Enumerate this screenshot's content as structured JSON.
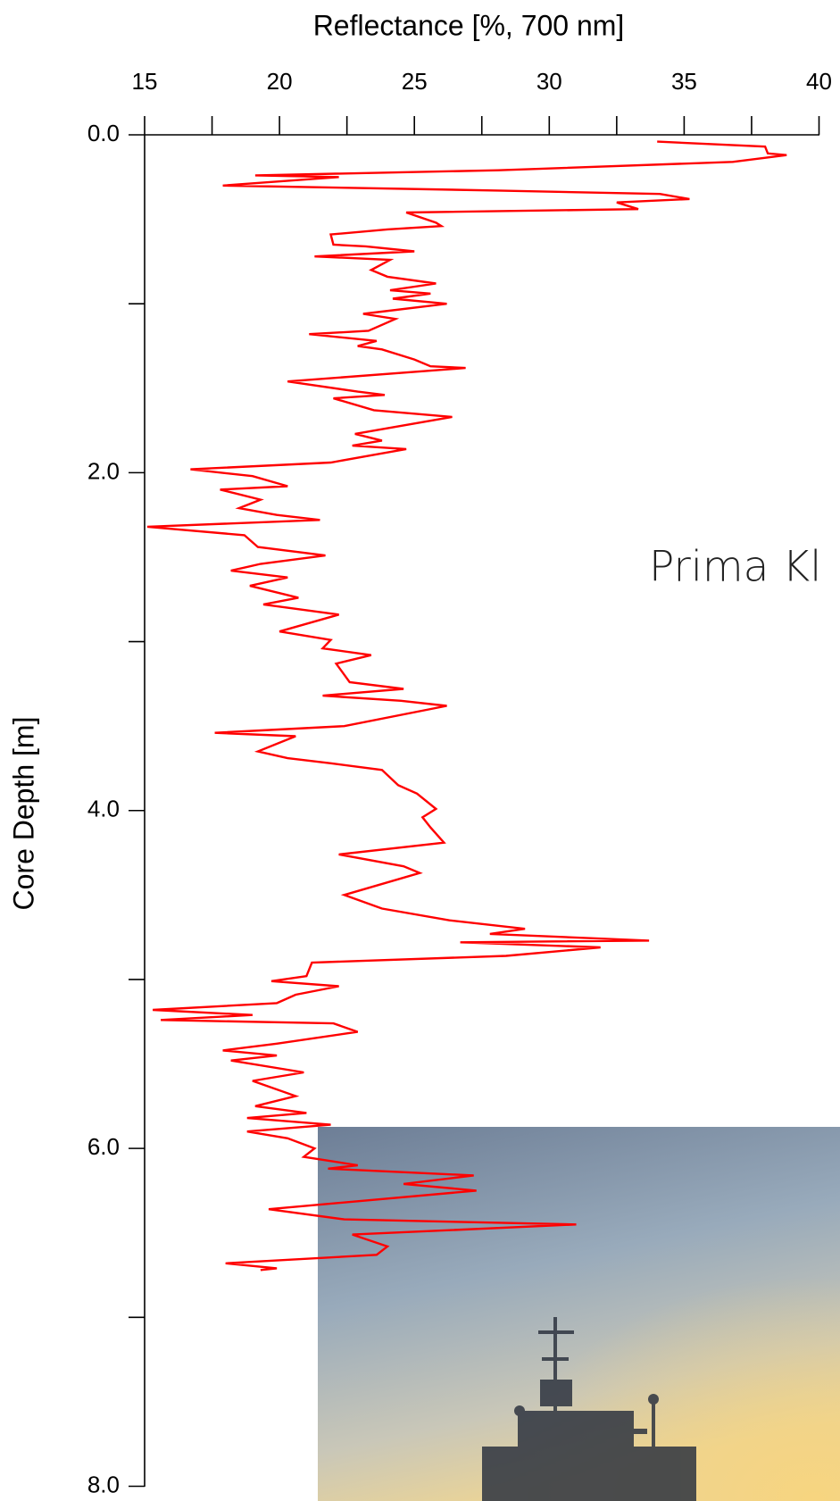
{
  "chart_data": {
    "type": "line",
    "orientation": "vertical",
    "ylabel": "Reflectance [%, 700 nm]",
    "xlabel": "Core Depth [m]",
    "annotation": "Prima Kl",
    "color": "#ff0000",
    "ylim": [
      15,
      40
    ],
    "yticks": [
      15,
      20,
      25,
      30,
      35,
      40
    ],
    "yminorticks": [
      17.5,
      22.5,
      27.5,
      32.5,
      37.5
    ],
    "xlim": [
      0,
      8
    ],
    "xticks": [
      {
        "value": 0,
        "label": "0.0"
      },
      {
        "value": 2,
        "label": "2.0"
      },
      {
        "value": 4,
        "label": "4.0"
      },
      {
        "value": 6,
        "label": "6.0"
      },
      {
        "value": 8,
        "label": "8.0"
      }
    ],
    "xminorticks": [
      1,
      3,
      5,
      7
    ],
    "x": [
      0.04,
      0.07,
      0.11,
      0.12,
      0.16,
      0.21,
      0.24,
      0.25,
      0.3,
      0.33,
      0.35,
      0.38,
      0.4,
      0.44,
      0.46,
      0.52,
      0.54,
      0.56,
      0.59,
      0.65,
      0.66,
      0.69,
      0.72,
      0.74,
      0.8,
      0.84,
      0.88,
      0.92,
      0.94,
      0.97,
      1.0,
      1.06,
      1.09,
      1.16,
      1.18,
      1.22,
      1.25,
      1.27,
      1.33,
      1.37,
      1.38,
      1.46,
      1.52,
      1.54,
      1.56,
      1.63,
      1.67,
      1.77,
      1.81,
      1.84,
      1.86,
      1.94,
      1.98,
      2.02,
      2.08,
      2.1,
      2.16,
      2.21,
      2.25,
      2.28,
      2.32,
      2.37,
      2.44,
      2.49,
      2.54,
      2.58,
      2.62,
      2.67,
      2.74,
      2.78,
      2.84,
      2.94,
      2.99,
      3.04,
      3.08,
      3.13,
      3.24,
      3.28,
      3.32,
      3.35,
      3.38,
      3.5,
      3.54,
      3.56,
      3.65,
      3.69,
      3.72,
      3.76,
      3.85,
      3.9,
      3.99,
      4.04,
      4.1,
      4.19,
      4.26,
      4.33,
      4.37,
      4.5,
      4.58,
      4.65,
      4.7,
      4.73,
      4.77,
      4.78,
      4.81,
      4.86,
      4.9,
      4.98,
      5.01,
      5.04,
      5.09,
      5.14,
      5.18,
      5.21,
      5.24,
      5.26,
      5.31,
      5.38,
      5.42,
      5.45,
      5.48,
      5.55,
      5.6,
      5.69,
      5.75,
      5.79,
      5.82,
      5.86,
      5.9,
      5.94,
      6.0,
      6.05,
      6.1,
      6.12,
      6.16,
      6.21,
      6.25,
      6.36,
      6.42,
      6.45,
      6.51,
      6.58,
      6.63,
      6.68,
      6.71,
      6.72
    ],
    "values": [
      34.0,
      38.0,
      38.1,
      38.8,
      36.8,
      28.1,
      19.1,
      22.2,
      17.9,
      28.1,
      34.1,
      35.2,
      32.5,
      33.3,
      24.7,
      25.8,
      26.0,
      24.0,
      21.9,
      22.0,
      23.2,
      25.0,
      21.3,
      24.1,
      23.4,
      24.0,
      25.8,
      24.1,
      25.6,
      24.2,
      26.2,
      23.1,
      24.3,
      23.3,
      21.1,
      23.6,
      22.9,
      23.8,
      25.0,
      25.6,
      26.9,
      20.3,
      22.9,
      23.9,
      22.0,
      23.5,
      26.4,
      22.8,
      23.8,
      22.7,
      24.7,
      21.9,
      16.7,
      19.0,
      20.3,
      17.8,
      19.3,
      18.5,
      19.9,
      21.5,
      15.1,
      18.7,
      19.2,
      21.7,
      19.3,
      18.2,
      20.3,
      18.9,
      20.7,
      19.4,
      22.2,
      20.0,
      21.9,
      21.6,
      23.4,
      22.1,
      22.6,
      24.6,
      21.6,
      24.5,
      26.2,
      22.4,
      17.6,
      20.6,
      19.2,
      20.3,
      21.9,
      23.8,
      24.4,
      25.1,
      25.8,
      25.3,
      25.6,
      26.1,
      22.2,
      24.6,
      25.2,
      22.4,
      23.8,
      26.3,
      29.1,
      27.8,
      33.7,
      26.7,
      31.9,
      28.4,
      21.2,
      21.0,
      19.7,
      22.2,
      20.6,
      19.9,
      15.3,
      19.0,
      15.6,
      22.0,
      22.9,
      19.9,
      17.9,
      19.9,
      18.2,
      20.9,
      19.0,
      20.6,
      19.1,
      21.0,
      18.8,
      21.9,
      18.8,
      20.3,
      21.3,
      20.9,
      22.9,
      21.8,
      27.2,
      24.6,
      27.3,
      19.6,
      22.4,
      31.0,
      22.7,
      24.0,
      23.6,
      18.0,
      19.9,
      19.3
    ]
  }
}
